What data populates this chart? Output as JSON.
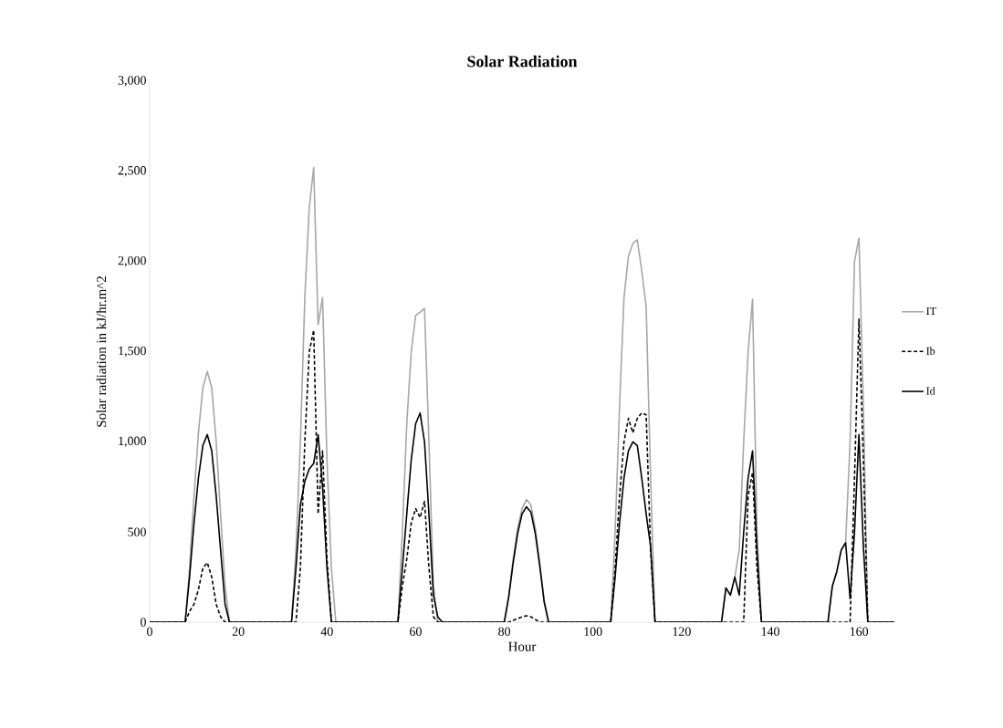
{
  "chart_data": {
    "type": "line",
    "title": "Solar Radiation",
    "xlabel": "Hour",
    "ylabel": "Solar radiation in kJ/hr.m^2",
    "x": [
      0,
      8,
      9,
      10,
      11,
      12,
      13,
      14,
      15,
      16,
      17,
      18,
      32,
      33,
      34,
      35,
      36,
      37,
      38,
      39,
      40,
      41,
      42,
      56,
      57,
      58,
      59,
      60,
      61,
      62,
      63,
      64,
      65,
      66,
      80,
      81,
      82,
      83,
      84,
      85,
      86,
      87,
      88,
      89,
      90,
      104,
      105,
      106,
      107,
      108,
      109,
      110,
      111,
      112,
      113,
      114,
      129,
      130,
      131,
      132,
      133,
      134,
      135,
      136,
      137,
      138,
      153,
      154,
      155,
      156,
      157,
      158,
      159,
      160,
      161,
      162,
      168
    ],
    "series": [
      {
        "name": "IT",
        "color": "#a6a6a6",
        "line_style": "solid",
        "values": [
          0,
          0,
          300,
          700,
          1050,
          1300,
          1390,
          1300,
          1000,
          600,
          200,
          0,
          0,
          400,
          1000,
          1800,
          2300,
          2520,
          1650,
          1800,
          900,
          300,
          0,
          0,
          500,
          1100,
          1500,
          1700,
          1720,
          1740,
          1000,
          200,
          0,
          0,
          0,
          150,
          350,
          520,
          630,
          680,
          650,
          520,
          330,
          120,
          0,
          0,
          500,
          1200,
          1800,
          2030,
          2100,
          2120,
          1950,
          1750,
          800,
          0,
          0,
          190,
          150,
          250,
          400,
          1000,
          1500,
          1790,
          500,
          0,
          0,
          200,
          280,
          400,
          440,
          1000,
          2000,
          2130,
          1200,
          0,
          0
        ]
      },
      {
        "name": "Ib",
        "color": "#000000",
        "line_style": "dashed",
        "values": [
          0,
          0,
          60,
          100,
          180,
          300,
          330,
          250,
          100,
          30,
          0,
          0,
          0,
          0,
          300,
          1000,
          1500,
          1620,
          600,
          950,
          350,
          0,
          0,
          0,
          200,
          350,
          550,
          630,
          580,
          670,
          300,
          30,
          0,
          0,
          0,
          0,
          10,
          20,
          30,
          35,
          30,
          15,
          0,
          0,
          0,
          0,
          300,
          700,
          1000,
          1130,
          1050,
          1130,
          1160,
          1150,
          400,
          0,
          0,
          0,
          0,
          0,
          0,
          0,
          700,
          830,
          300,
          0,
          0,
          0,
          0,
          0,
          0,
          0,
          800,
          1680,
          900,
          0,
          0
        ]
      },
      {
        "name": "Id",
        "color": "#000000",
        "line_style": "solid",
        "values": [
          0,
          0,
          250,
          550,
          800,
          980,
          1040,
          950,
          700,
          400,
          100,
          0,
          0,
          300,
          650,
          780,
          850,
          880,
          1040,
          750,
          300,
          0,
          0,
          0,
          300,
          600,
          900,
          1100,
          1160,
          1000,
          600,
          150,
          30,
          0,
          0,
          140,
          330,
          490,
          600,
          640,
          610,
          490,
          310,
          110,
          0,
          0,
          250,
          550,
          800,
          950,
          1000,
          980,
          800,
          600,
          420,
          0,
          0,
          190,
          150,
          250,
          150,
          500,
          800,
          950,
          400,
          0,
          0,
          200,
          280,
          400,
          440,
          130,
          500,
          1040,
          420,
          0,
          0
        ]
      }
    ],
    "xlim": [
      0,
      168
    ],
    "xticks": [
      0,
      20,
      40,
      60,
      80,
      100,
      120,
      140,
      160
    ],
    "ylim": [
      0,
      3000
    ],
    "yticks": [
      0,
      500,
      {
        "value": 1000,
        "label": "1,000"
      },
      {
        "value": 1500,
        "label": "1,500"
      },
      {
        "value": 2000,
        "label": "2,000"
      },
      {
        "value": 2500,
        "label": "2,500"
      },
      {
        "value": 3000,
        "label": "3,000"
      }
    ],
    "grid": false,
    "legend": "right",
    "marker": "none"
  }
}
